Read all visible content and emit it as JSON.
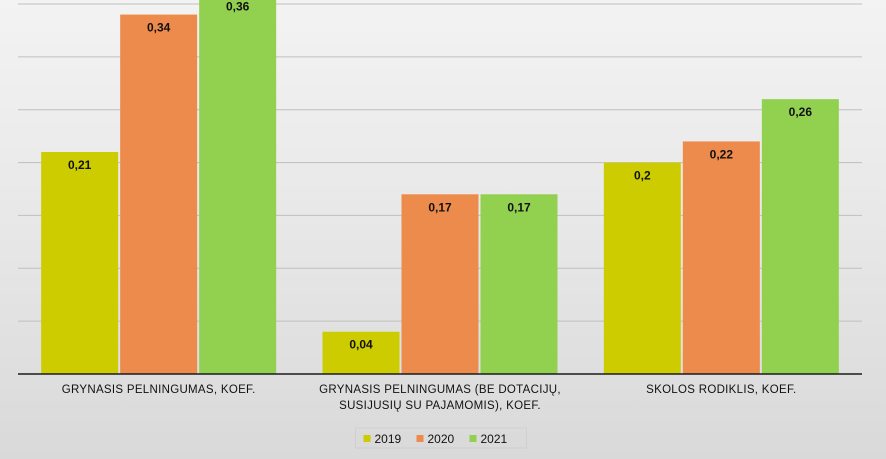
{
  "chart_data": {
    "type": "bar",
    "title": "",
    "xlabel": "",
    "ylabel": "",
    "ylim": [
      0,
      0.35
    ],
    "grid": true,
    "legend_position": "bottom",
    "categories": [
      [
        "GRYNASIS PELNINGUMAS, KOEF."
      ],
      [
        "GRYNASIS PELNINGUMAS (BE DOTACIJŲ,",
        "SUSIJUSIŲ SU PAJAMOMIS), KOEF."
      ],
      [
        "SKOLOS RODIKLIS, KOEF."
      ]
    ],
    "series": [
      {
        "name": "2019",
        "color": "#cccc00",
        "values": [
          0.21,
          0.04,
          0.2
        ],
        "labels": [
          "0,21",
          "0,04",
          "0,2"
        ]
      },
      {
        "name": "2020",
        "color": "#ed8b4c",
        "values": [
          0.34,
          0.17,
          0.22
        ],
        "labels": [
          "0,34",
          "0,17",
          "0,22"
        ]
      },
      {
        "name": "2021",
        "color": "#92d050",
        "values": [
          0.36,
          0.17,
          0.26
        ],
        "labels": [
          "0,36",
          "0,17",
          "0,26"
        ]
      }
    ]
  }
}
